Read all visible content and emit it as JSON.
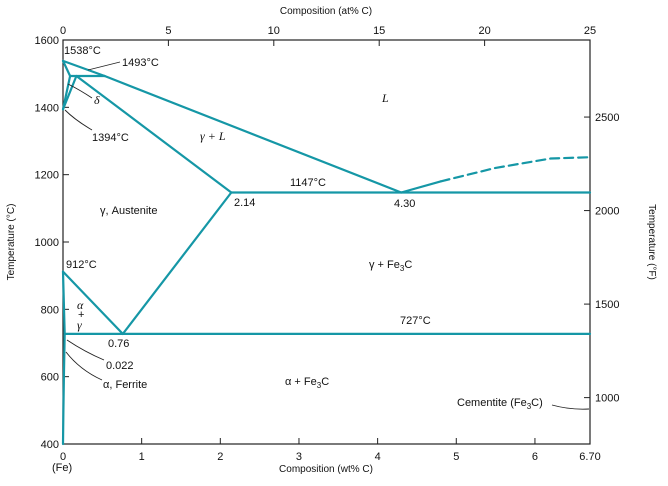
{
  "colors": {
    "phase_line": "#1597a6",
    "axis": "#222222",
    "text": "#111111"
  },
  "axes": {
    "top": {
      "title": "Composition (at% C)",
      "ticks": [
        "0",
        "5",
        "10",
        "15",
        "20",
        "25"
      ]
    },
    "bottom": {
      "title": "Composition (wt% C)",
      "ticks": [
        "0",
        "1",
        "2",
        "3",
        "4",
        "5",
        "6",
        "6.70"
      ],
      "origin_label": "(Fe)"
    },
    "left": {
      "title": "Temperature (°C)",
      "ticks": [
        "400",
        "600",
        "800",
        "1000",
        "1200",
        "1400",
        "1600"
      ]
    },
    "right": {
      "title": "Temperature (°F)",
      "ticks": [
        "1000",
        "1500",
        "2000",
        "2500"
      ]
    }
  },
  "regions": {
    "liquid": "L",
    "gamma_liquid": "γ + L",
    "austenite": "γ, Austenite",
    "gamma_fe3c": "γ + Fe3C",
    "alpha_fe3c": "α + Fe3C",
    "delta": "δ",
    "alpha_top": "α",
    "alpha_plus": "+",
    "alpha_gamma": "γ",
    "ferrite": "α, Ferrite",
    "cementite": "Cementite (Fe3C)"
  },
  "annotations": {
    "t1538": "1538°C",
    "t1493": "1493°C",
    "t1394": "1394°C",
    "t1147": "1147°C",
    "t912": "912°C",
    "t727": "727°C",
    "c214": "2.14",
    "c430": "4.30",
    "c076": "0.76",
    "c0022": "0.022"
  },
  "chart_data": {
    "type": "phase-diagram",
    "x_unit": "wt% C",
    "y_unit": "°C",
    "xlim": [
      0,
      6.7
    ],
    "ylim": [
      400,
      1600
    ],
    "curves": [
      {
        "name": "liquidus-delta",
        "style": "solid",
        "points": [
          [
            0,
            1538
          ],
          [
            0.53,
            1493
          ]
        ]
      },
      {
        "name": "solidus-delta",
        "style": "solid",
        "points": [
          [
            0,
            1538
          ],
          [
            0.09,
            1493
          ]
        ]
      },
      {
        "name": "peritectic",
        "style": "solid",
        "points": [
          [
            0.09,
            1493
          ],
          [
            0.53,
            1493
          ]
        ]
      },
      {
        "name": "delta-gamma-lower",
        "style": "solid",
        "points": [
          [
            0,
            1394
          ],
          [
            0.09,
            1493
          ]
        ]
      },
      {
        "name": "delta-gamma-upper",
        "style": "solid",
        "points": [
          [
            0,
            1394
          ],
          [
            0.17,
            1493
          ]
        ]
      },
      {
        "name": "liquidus-gamma",
        "style": "solid",
        "points": [
          [
            0.53,
            1493
          ],
          [
            4.3,
            1147
          ]
        ]
      },
      {
        "name": "solidus-gamma",
        "style": "solid",
        "points": [
          [
            0.17,
            1493
          ],
          [
            2.14,
            1147
          ]
        ]
      },
      {
        "name": "eutectic",
        "style": "solid",
        "points": [
          [
            2.14,
            1147
          ],
          [
            6.7,
            1147
          ]
        ]
      },
      {
        "name": "liquidus-cementite",
        "style": "solid",
        "points": [
          [
            4.3,
            1147
          ],
          [
            4.8,
            1180
          ]
        ]
      },
      {
        "name": "liquidus-cementite-est",
        "style": "dashed",
        "points": [
          [
            4.8,
            1180
          ],
          [
            5.5,
            1220
          ],
          [
            6.2,
            1248
          ],
          [
            6.7,
            1252
          ]
        ]
      },
      {
        "name": "acm",
        "style": "solid",
        "points": [
          [
            0.76,
            727
          ],
          [
            2.14,
            1147
          ]
        ]
      },
      {
        "name": "a3",
        "style": "solid",
        "points": [
          [
            0,
            912
          ],
          [
            0.76,
            727
          ]
        ]
      },
      {
        "name": "alpha-gamma",
        "style": "solid",
        "points": [
          [
            0,
            912
          ],
          [
            0.022,
            727
          ]
        ]
      },
      {
        "name": "eutectoid",
        "style": "solid",
        "points": [
          [
            0.022,
            727
          ],
          [
            6.7,
            727
          ]
        ]
      },
      {
        "name": "alpha-solvus",
        "style": "solid",
        "points": [
          [
            0.022,
            727
          ],
          [
            0.012,
            600
          ],
          [
            0.005,
            500
          ],
          [
            0,
            400
          ]
        ]
      }
    ]
  }
}
